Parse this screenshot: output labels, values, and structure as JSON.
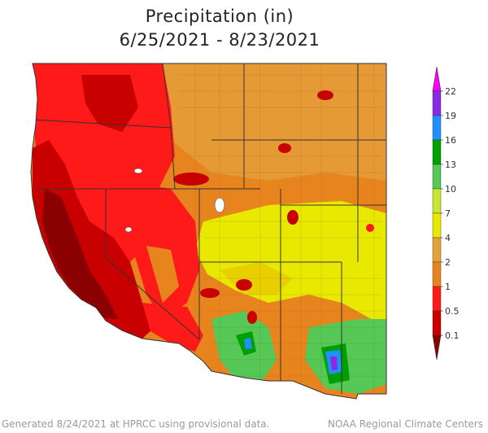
{
  "title": {
    "line1": "Precipitation (in)",
    "line2": "6/25/2021 - 8/23/2021"
  },
  "legend": {
    "bins": [
      {
        "label": "0.1",
        "color": "#8b0000"
      },
      {
        "label": "0.5",
        "color": "#c80000"
      },
      {
        "label": "1",
        "color": "#ff1a1a"
      },
      {
        "label": "2",
        "color": "#e8841e"
      },
      {
        "label": "4",
        "color": "#e0a23a"
      },
      {
        "label": "7",
        "color": "#e8e800"
      },
      {
        "label": "10",
        "color": "#c8e632"
      },
      {
        "label": "13",
        "color": "#55c855"
      },
      {
        "label": "16",
        "color": "#00a000"
      },
      {
        "label": "19",
        "color": "#1e90ff"
      },
      {
        "label": "22",
        "color": "#8a2be2"
      }
    ],
    "top_color": "#ff00ff"
  },
  "footer": {
    "left": "Generated 8/24/2021 at HPRCC using provisional data.",
    "right": "NOAA Regional Climate Centers"
  }
}
